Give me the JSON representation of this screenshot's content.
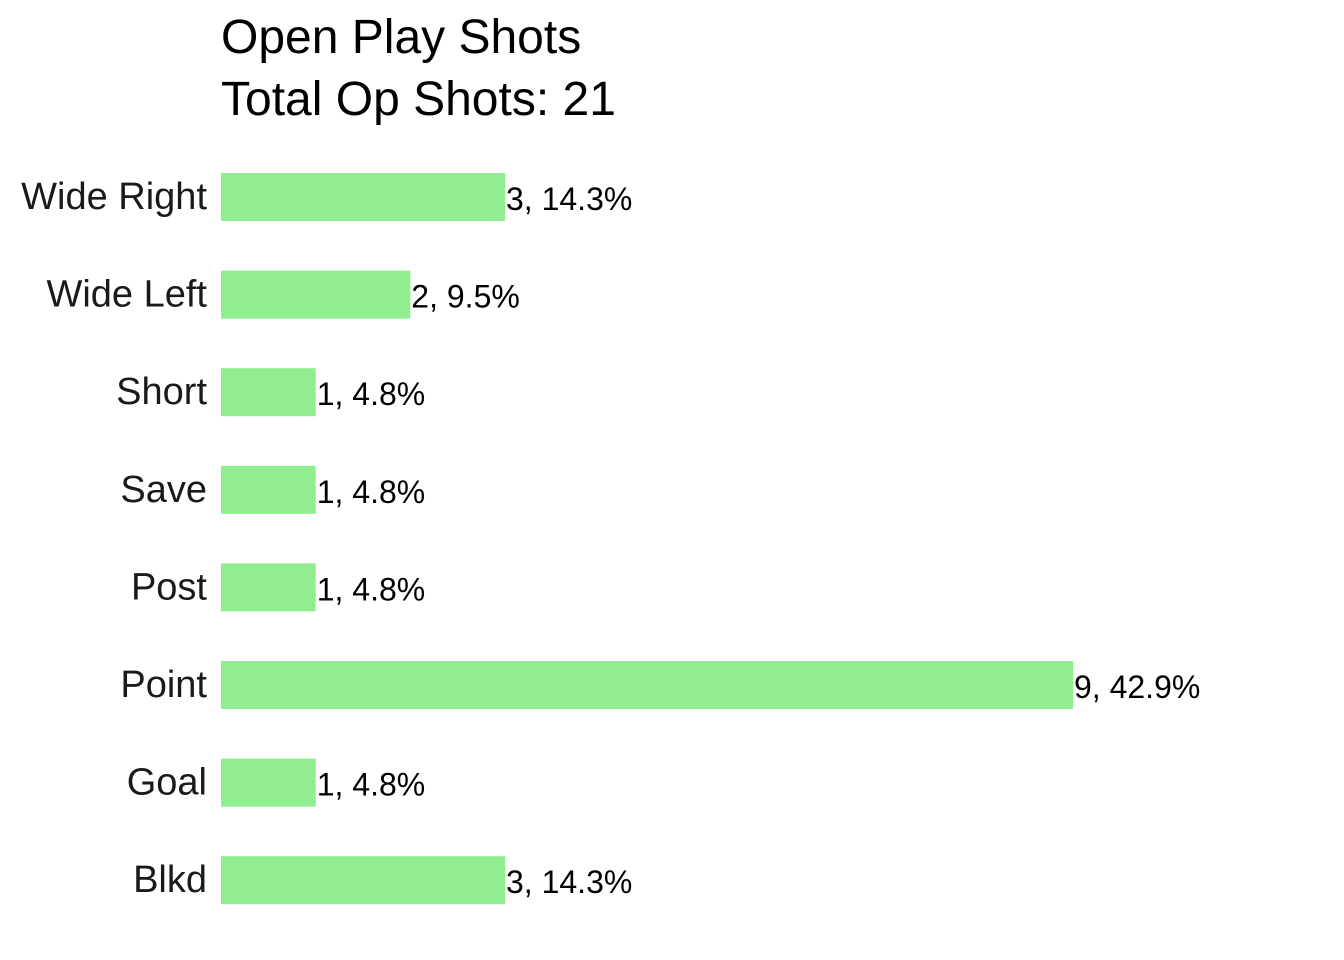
{
  "chart_data": {
    "type": "bar",
    "orientation": "horizontal",
    "title": "Open Play Shots",
    "subtitle": "Total Op Shots: 21",
    "categories": [
      "Wide Right",
      "Wide Left",
      "Short",
      "Save",
      "Post",
      "Point",
      "Goal",
      "Blkd"
    ],
    "values": [
      3,
      2,
      1,
      1,
      1,
      9,
      1,
      3
    ],
    "data_labels": [
      "3, 14.3%",
      "2, 9.5%",
      "1, 4.8%",
      "1, 4.8%",
      "1, 4.8%",
      "9, 42.9%",
      "1, 4.8%",
      "3, 14.3%"
    ],
    "xlim": [
      0,
      9
    ],
    "bar_color": "#90ee90",
    "grid": false,
    "axes_visible": false
  }
}
